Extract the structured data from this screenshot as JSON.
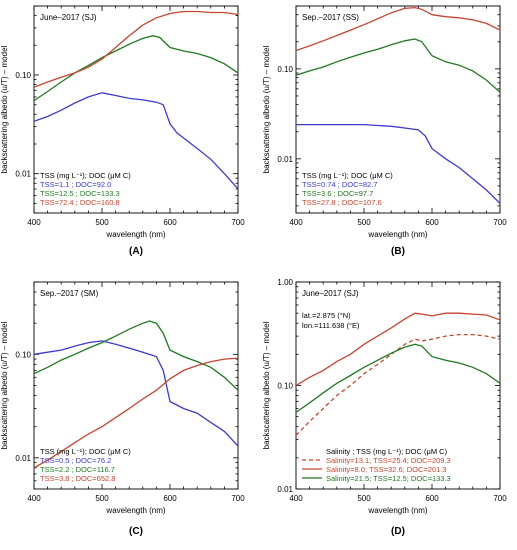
{
  "chart_data": [
    {
      "type": "line",
      "panel_label": "(A)",
      "title": "June–2017 (SJ)",
      "xlabel": "wavelength (nm)",
      "ylabel": "backscattering albedo (u/T) – model",
      "xlim": [
        400,
        700
      ],
      "ylim": [
        0.004,
        0.5
      ],
      "yscale": "log",
      "xticks": [
        "400",
        "500",
        "600",
        "700"
      ],
      "yticks": [
        {
          "v": 0.01,
          "label": "0.01"
        },
        {
          "v": 0.1,
          "label": "0.10"
        }
      ],
      "legend_header": "TSS (mg L⁻¹); DOC (μM C)",
      "series": [
        {
          "name": "TSS=1.1 ; DOC=92.0",
          "color": "#3a3ad6",
          "dash": "",
          "x": [
            400,
            420,
            440,
            460,
            480,
            500,
            520,
            540,
            560,
            580,
            590,
            600,
            610,
            620,
            640,
            660,
            680,
            700
          ],
          "y": [
            0.034,
            0.038,
            0.044,
            0.052,
            0.06,
            0.066,
            0.062,
            0.058,
            0.056,
            0.053,
            0.05,
            0.032,
            0.026,
            0.023,
            0.018,
            0.014,
            0.01,
            0.007
          ]
        },
        {
          "name": "TSS=12.5 ; DOC=133.3",
          "color": "#1f7a1f",
          "dash": "",
          "x": [
            400,
            420,
            440,
            460,
            480,
            500,
            520,
            540,
            560,
            575,
            585,
            600,
            620,
            640,
            660,
            680,
            700
          ],
          "y": [
            0.055,
            0.068,
            0.085,
            0.105,
            0.125,
            0.15,
            0.175,
            0.205,
            0.235,
            0.25,
            0.24,
            0.19,
            0.175,
            0.165,
            0.15,
            0.13,
            0.105
          ]
        },
        {
          "name": "TSS=72.4 ; DOC=160.8",
          "color": "#c8442e",
          "dash": "",
          "x": [
            400,
            420,
            440,
            460,
            480,
            500,
            520,
            540,
            560,
            580,
            600,
            620,
            640,
            660,
            680,
            700
          ],
          "y": [
            0.075,
            0.085,
            0.095,
            0.105,
            0.12,
            0.145,
            0.19,
            0.25,
            0.32,
            0.38,
            0.42,
            0.44,
            0.44,
            0.43,
            0.43,
            0.41
          ]
        }
      ]
    },
    {
      "type": "line",
      "panel_label": "(B)",
      "title": "Sep.–2017 (SS)",
      "xlabel": "wavelength (nm)",
      "ylabel": "backscattering albedo (u/T) – model",
      "xlim": [
        400,
        700
      ],
      "ylim": [
        0.0025,
        0.5
      ],
      "yscale": "log",
      "xticks": [
        "400",
        "500",
        "600",
        "700"
      ],
      "yticks": [
        {
          "v": 0.01,
          "label": "0.01"
        },
        {
          "v": 0.1,
          "label": "0.10"
        }
      ],
      "legend_header": "TSS (mg L⁻¹); DOC (μM C)",
      "series": [
        {
          "name": "TSS=0.74 ; DOC=82.7",
          "color": "#3a3ad6",
          "dash": "",
          "x": [
            400,
            450,
            500,
            540,
            560,
            580,
            590,
            600,
            620,
            640,
            660,
            680,
            700
          ],
          "y": [
            0.024,
            0.024,
            0.024,
            0.023,
            0.022,
            0.021,
            0.018,
            0.013,
            0.01,
            0.008,
            0.006,
            0.0045,
            0.0032
          ]
        },
        {
          "name": "TSS=3.6 ; DOC=97.7",
          "color": "#1f7a1f",
          "dash": "",
          "x": [
            400,
            420,
            440,
            460,
            480,
            500,
            520,
            540,
            560,
            575,
            585,
            600,
            620,
            640,
            660,
            680,
            700
          ],
          "y": [
            0.085,
            0.095,
            0.105,
            0.12,
            0.135,
            0.15,
            0.165,
            0.185,
            0.205,
            0.215,
            0.2,
            0.14,
            0.12,
            0.11,
            0.095,
            0.075,
            0.055
          ]
        },
        {
          "name": "TSS=27.8 ; DOC=107.6",
          "color": "#c8442e",
          "dash": "",
          "x": [
            400,
            420,
            440,
            460,
            480,
            500,
            520,
            540,
            560,
            575,
            585,
            600,
            620,
            640,
            660,
            680,
            700
          ],
          "y": [
            0.16,
            0.18,
            0.205,
            0.235,
            0.27,
            0.31,
            0.36,
            0.42,
            0.47,
            0.48,
            0.46,
            0.4,
            0.38,
            0.37,
            0.35,
            0.32,
            0.27
          ]
        }
      ]
    },
    {
      "type": "line",
      "panel_label": "(C)",
      "title": "Sep.–2017 (SM)",
      "xlabel": "wavelength (nm)",
      "ylabel": "backscattering albedo (u/T) – model",
      "xlim": [
        400,
        700
      ],
      "ylim": [
        0.005,
        0.5
      ],
      "yscale": "log",
      "xticks": [
        "400",
        "500",
        "600",
        "700"
      ],
      "yticks": [
        {
          "v": 0.01,
          "label": "0.01"
        },
        {
          "v": 0.1,
          "label": "0.10"
        }
      ],
      "legend_header": "TSS (mg L⁻¹); DOC (μM C)",
      "series": [
        {
          "name": "TSS=0.5 ; DOC=76.2",
          "color": "#3a3ad6",
          "dash": "",
          "x": [
            400,
            420,
            440,
            460,
            480,
            500,
            520,
            540,
            560,
            580,
            590,
            600,
            620,
            640,
            660,
            680,
            700
          ],
          "y": [
            0.1,
            0.105,
            0.11,
            0.12,
            0.13,
            0.135,
            0.125,
            0.115,
            0.105,
            0.095,
            0.07,
            0.035,
            0.03,
            0.027,
            0.022,
            0.018,
            0.013
          ]
        },
        {
          "name": "TSS=2.2 ; DOC=116.7",
          "color": "#1f7a1f",
          "dash": "",
          "x": [
            400,
            420,
            440,
            460,
            480,
            500,
            520,
            540,
            560,
            570,
            580,
            590,
            600,
            620,
            640,
            660,
            680,
            700
          ],
          "y": [
            0.065,
            0.075,
            0.088,
            0.1,
            0.115,
            0.13,
            0.15,
            0.175,
            0.2,
            0.21,
            0.2,
            0.16,
            0.11,
            0.095,
            0.085,
            0.075,
            0.06,
            0.045
          ]
        },
        {
          "name": "TSS=3.8 ; DOC=652.8",
          "color": "#c8442e",
          "dash": "",
          "x": [
            400,
            420,
            440,
            460,
            480,
            500,
            520,
            540,
            560,
            580,
            600,
            620,
            640,
            660,
            680,
            700
          ],
          "y": [
            0.008,
            0.0095,
            0.0115,
            0.014,
            0.017,
            0.02,
            0.0245,
            0.03,
            0.037,
            0.045,
            0.058,
            0.07,
            0.078,
            0.085,
            0.09,
            0.092
          ]
        }
      ]
    },
    {
      "type": "line",
      "panel_label": "(D)",
      "title": "June–2017 (SJ)",
      "annotation": [
        "lat.=2.875 (°N)",
        "lon.=111.638 (°E)"
      ],
      "xlabel": "wavelength (nm)",
      "ylabel": "backscattering albedo (u/T) – model",
      "xlim": [
        400,
        700
      ],
      "ylim": [
        0.01,
        1.0
      ],
      "yscale": "log",
      "xticks": [
        "400",
        "500",
        "600",
        "700"
      ],
      "yticks": [
        {
          "v": 0.01,
          "label": "0.01"
        },
        {
          "v": 0.1,
          "label": "0.10"
        },
        {
          "v": 1.0,
          "label": "1.00"
        }
      ],
      "legend_header": "Salinity ; TSS (mg L⁻¹); DOC (μM C)",
      "series": [
        {
          "name": "Salinity=13.1; TSS=25.4; DOC=209.3",
          "color": "#c8442e",
          "dash": "4,3",
          "x": [
            400,
            420,
            440,
            460,
            480,
            500,
            520,
            540,
            560,
            575,
            585,
            600,
            620,
            640,
            660,
            680,
            700
          ],
          "y": [
            0.033,
            0.045,
            0.06,
            0.08,
            0.1,
            0.13,
            0.16,
            0.2,
            0.25,
            0.28,
            0.27,
            0.28,
            0.3,
            0.31,
            0.31,
            0.3,
            0.28
          ]
        },
        {
          "name": "Salinity=8.0; TSS=32.6; DOC=201.3",
          "color": "#c8442e",
          "dash": "",
          "x": [
            400,
            420,
            440,
            460,
            480,
            500,
            520,
            540,
            560,
            575,
            585,
            600,
            620,
            640,
            660,
            680,
            700
          ],
          "y": [
            0.1,
            0.12,
            0.14,
            0.17,
            0.2,
            0.25,
            0.3,
            0.36,
            0.44,
            0.5,
            0.49,
            0.47,
            0.5,
            0.5,
            0.49,
            0.48,
            0.43
          ]
        },
        {
          "name": "Salinity=21.5; TSS=12.5; DOC=133.3",
          "color": "#1f7a1f",
          "dash": "",
          "x": [
            400,
            420,
            440,
            460,
            480,
            500,
            520,
            540,
            560,
            575,
            585,
            600,
            620,
            640,
            660,
            680,
            700
          ],
          "y": [
            0.055,
            0.068,
            0.085,
            0.105,
            0.125,
            0.15,
            0.175,
            0.205,
            0.235,
            0.25,
            0.24,
            0.19,
            0.175,
            0.165,
            0.15,
            0.13,
            0.105
          ]
        }
      ]
    }
  ]
}
